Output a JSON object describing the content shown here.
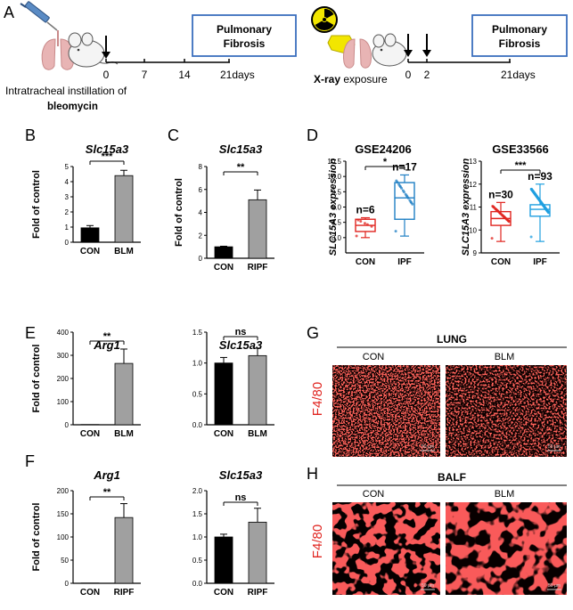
{
  "panel_letters": {
    "a": "A",
    "b": "B",
    "c": "C",
    "d": "D",
    "e": "E",
    "f": "F",
    "g": "G",
    "h": "H"
  },
  "schemes": {
    "left": {
      "days": [
        "0",
        "7",
        "14",
        "21days"
      ],
      "caption_line1": "Intratracheal instillation of",
      "caption_line2": "bleomycin",
      "outcome_line1": "Pulmonary",
      "outcome_line2": "Fibrosis"
    },
    "right": {
      "days": [
        "0",
        "2",
        "21days"
      ],
      "caption_bold": "X-ray",
      "caption_rest": " exposure",
      "outcome_line1": "Pulmonary",
      "outcome_line2": "Fibrosis"
    },
    "colors": {
      "box_border": "#3a6fbd",
      "radiation": "#f2e600",
      "syringe": "#5a8bc4",
      "lung": "#e8b4b4"
    }
  },
  "micrographs": {
    "g": {
      "header": "LUNG",
      "con": "CON",
      "blm": "BLM",
      "stain": "F4/80",
      "scale": "50 µm"
    },
    "h": {
      "header": "BALF",
      "con": "CON",
      "blm": "BLM",
      "stain": "F4/80",
      "scale": "50 µm"
    },
    "stain_color": "#ff2a1f"
  },
  "chart_data": [
    {
      "id": "b",
      "type": "bar",
      "title": "Slc15a3",
      "ylabel": "Fold of control",
      "categories": [
        "CON",
        "BLM"
      ],
      "values": [
        0.95,
        4.4
      ],
      "errors": [
        0.15,
        0.35
      ],
      "bar_colors": [
        "#000000",
        "#a0a0a0"
      ],
      "ylim": [
        0,
        5
      ],
      "yticks": [
        "0",
        "1",
        "2",
        "3",
        "4",
        "5"
      ],
      "significance": "***"
    },
    {
      "id": "c",
      "type": "bar",
      "title": "Slc15a3",
      "ylabel": "Fold of control",
      "categories": [
        "CON",
        "RIPF"
      ],
      "values": [
        1.0,
        5.1
      ],
      "errors": [
        0.05,
        0.85
      ],
      "bar_colors": [
        "#000000",
        "#a0a0a0"
      ],
      "ylim": [
        0,
        8
      ],
      "yticks": [
        "0",
        "2",
        "4",
        "6",
        "8"
      ],
      "significance": "**"
    },
    {
      "id": "d1",
      "type": "box",
      "title": "GSE24206",
      "ylabel": "SLC15A3 expression",
      "categories": [
        "CON",
        "IPF"
      ],
      "n_labels": [
        "n=6",
        "n=17"
      ],
      "colors": [
        "#e0241f",
        "#1f7fc4"
      ],
      "boxes": [
        {
          "min": 8.0,
          "q1": 8.2,
          "median": 8.4,
          "q3": 8.6,
          "max": 8.65
        },
        {
          "min": 8.05,
          "q1": 8.6,
          "median": 9.3,
          "q3": 9.8,
          "max": 10.05
        }
      ],
      "ylim": [
        7.5,
        10.5
      ],
      "yticks": [
        "8.0",
        "8.5",
        "9.0",
        "9.5",
        "10.0",
        "10.5"
      ],
      "significance": "*"
    },
    {
      "id": "d2",
      "type": "box",
      "title": "GSE33566",
      "ylabel": "SLC15A3 expression",
      "categories": [
        "CON",
        "IPF"
      ],
      "n_labels": [
        "n=30",
        "n=93"
      ],
      "colors": [
        "#e0241f",
        "#1f9fe0"
      ],
      "boxes": [
        {
          "min": 9.5,
          "q1": 10.2,
          "median": 10.5,
          "q3": 10.8,
          "max": 11.2
        },
        {
          "min": 9.5,
          "q1": 10.6,
          "median": 10.9,
          "q3": 11.1,
          "max": 12.0
        }
      ],
      "ylim": [
        9,
        13
      ],
      "yticks": [
        "9",
        "10",
        "11",
        "12",
        "13"
      ],
      "significance": "***"
    },
    {
      "id": "e1",
      "type": "bar",
      "title": "Arg1",
      "ylabel": "Fold of control",
      "categories": [
        "CON",
        "BLM"
      ],
      "values": [
        1,
        265
      ],
      "errors": [
        0,
        62
      ],
      "bar_colors": [
        "#000000",
        "#a0a0a0"
      ],
      "ylim": [
        0,
        400
      ],
      "yticks": [
        "0",
        "100",
        "200",
        "300",
        "400"
      ],
      "significance": "**"
    },
    {
      "id": "e2",
      "type": "bar",
      "title": "Slc15a3",
      "ylabel": "",
      "categories": [
        "CON",
        "BLM"
      ],
      "values": [
        1.0,
        1.12
      ],
      "errors": [
        0.09,
        0.12
      ],
      "bar_colors": [
        "#000000",
        "#a0a0a0"
      ],
      "ylim": [
        0,
        1.5
      ],
      "yticks": [
        "0.0",
        "0.5",
        "1.0",
        "1.5"
      ],
      "significance": "ns"
    },
    {
      "id": "f1",
      "type": "bar",
      "title": "Arg1",
      "ylabel": "Fold of control",
      "categories": [
        "CON",
        "RIPF"
      ],
      "values": [
        0.5,
        142
      ],
      "errors": [
        0,
        30
      ],
      "bar_colors": [
        "#000000",
        "#a0a0a0"
      ],
      "ylim": [
        0,
        200
      ],
      "yticks": [
        "0",
        "50",
        "100",
        "150",
        "200"
      ],
      "significance": "**"
    },
    {
      "id": "f2",
      "type": "bar",
      "title": "Slc15a3",
      "ylabel": "",
      "categories": [
        "CON",
        "RIPF"
      ],
      "values": [
        1.0,
        1.32
      ],
      "errors": [
        0.06,
        0.3
      ],
      "bar_colors": [
        "#000000",
        "#a0a0a0"
      ],
      "ylim": [
        0,
        2
      ],
      "yticks": [
        "0.0",
        "0.5",
        "1.0",
        "1.5",
        "2.0"
      ],
      "significance": "ns"
    }
  ]
}
